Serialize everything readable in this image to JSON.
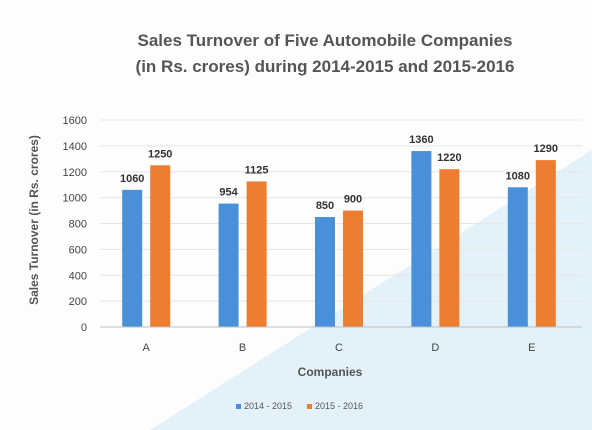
{
  "chart_data": {
    "type": "bar",
    "title_lines": [
      "Sales Turnover of Five Automobile Companies",
      "(in Rs. crores) during 2014-2015 and 2015-2016"
    ],
    "xlabel": "Companies",
    "ylabel": "Sales Turnover (in Rs. crores)",
    "categories": [
      "A",
      "B",
      "C",
      "D",
      "E"
    ],
    "series": [
      {
        "name": "2014 - 2015",
        "color": "#4a90d9",
        "values": [
          1060,
          954,
          850,
          1360,
          1080
        ]
      },
      {
        "name": "2015 - 2016",
        "color": "#ed7d31",
        "values": [
          1250,
          1125,
          900,
          1220,
          1290
        ]
      }
    ],
    "ylim": [
      0,
      1600
    ],
    "yticks": [
      0,
      200,
      400,
      600,
      800,
      1000,
      1200,
      1400,
      1600
    ],
    "grid": true,
    "legend_position": "bottom",
    "data_labels": true
  }
}
